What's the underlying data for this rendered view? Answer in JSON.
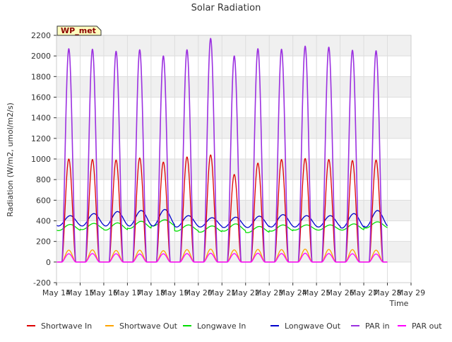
{
  "chart_data": {
    "type": "line",
    "title": "Solar Radiation",
    "xlabel": "Time",
    "ylabel": "Radiation (W/m2, umol/m2/s)",
    "station_label": "WP_met",
    "x_tick_labels": [
      "May 14",
      "May 15",
      "May 16",
      "May 17",
      "May 18",
      "May 19",
      "May 20",
      "May 21",
      "May 22",
      "May 23",
      "May 24",
      "May 25",
      "May 26",
      "May 27",
      "May 28",
      "May 29"
    ],
    "y_ticks": [
      -200,
      0,
      200,
      400,
      600,
      800,
      1000,
      1200,
      1400,
      1600,
      1800,
      2000,
      2200
    ],
    "ylim": [
      -200,
      2200
    ],
    "xlim_days": [
      0,
      15
    ],
    "grid": true,
    "legend_position": "bottom",
    "daily_peak_hour": 12.5,
    "daylight_half_width_hours": 7,
    "series": [
      {
        "name": "Shortwave In",
        "color": "#dd0000",
        "kind": "solar",
        "daily_peaks": [
          1000,
          995,
          990,
          1010,
          970,
          1020,
          1040,
          850,
          960,
          995,
          1005,
          995,
          985,
          990
        ]
      },
      {
        "name": "Shortwave Out",
        "color": "#ffa500",
        "kind": "solar",
        "daily_peaks": [
          115,
          118,
          112,
          115,
          110,
          120,
          125,
          118,
          122,
          120,
          125,
          122,
          120,
          115
        ]
      },
      {
        "name": "Longwave In",
        "color": "#00dd00",
        "kind": "longwave",
        "daily_mean": [
          335,
          345,
          345,
          360,
          380,
          330,
          320,
          335,
          315,
          330,
          335,
          335,
          340,
          360
        ],
        "daily_amp": [
          30,
          30,
          35,
          35,
          30,
          30,
          30,
          35,
          30,
          30,
          25,
          25,
          30,
          30
        ]
      },
      {
        "name": "Longwave Out",
        "color": "#0000cc",
        "kind": "longwave",
        "daily_mean": [
          400,
          410,
          420,
          425,
          430,
          395,
          385,
          385,
          390,
          400,
          395,
          395,
          400,
          420
        ],
        "daily_amp": [
          50,
          60,
          70,
          75,
          80,
          55,
          45,
          50,
          55,
          60,
          55,
          55,
          70,
          80
        ]
      },
      {
        "name": "PAR in",
        "color": "#9b30e0",
        "kind": "solar",
        "daily_peaks": [
          2070,
          2065,
          2045,
          2060,
          2000,
          2060,
          2170,
          2000,
          2070,
          2065,
          2095,
          2085,
          2055,
          2050
        ]
      },
      {
        "name": "PAR out",
        "color": "#ff00ff",
        "kind": "solar",
        "daily_peaks": [
          80,
          82,
          80,
          78,
          80,
          82,
          85,
          82,
          85,
          82,
          85,
          82,
          80,
          78
        ]
      }
    ]
  }
}
